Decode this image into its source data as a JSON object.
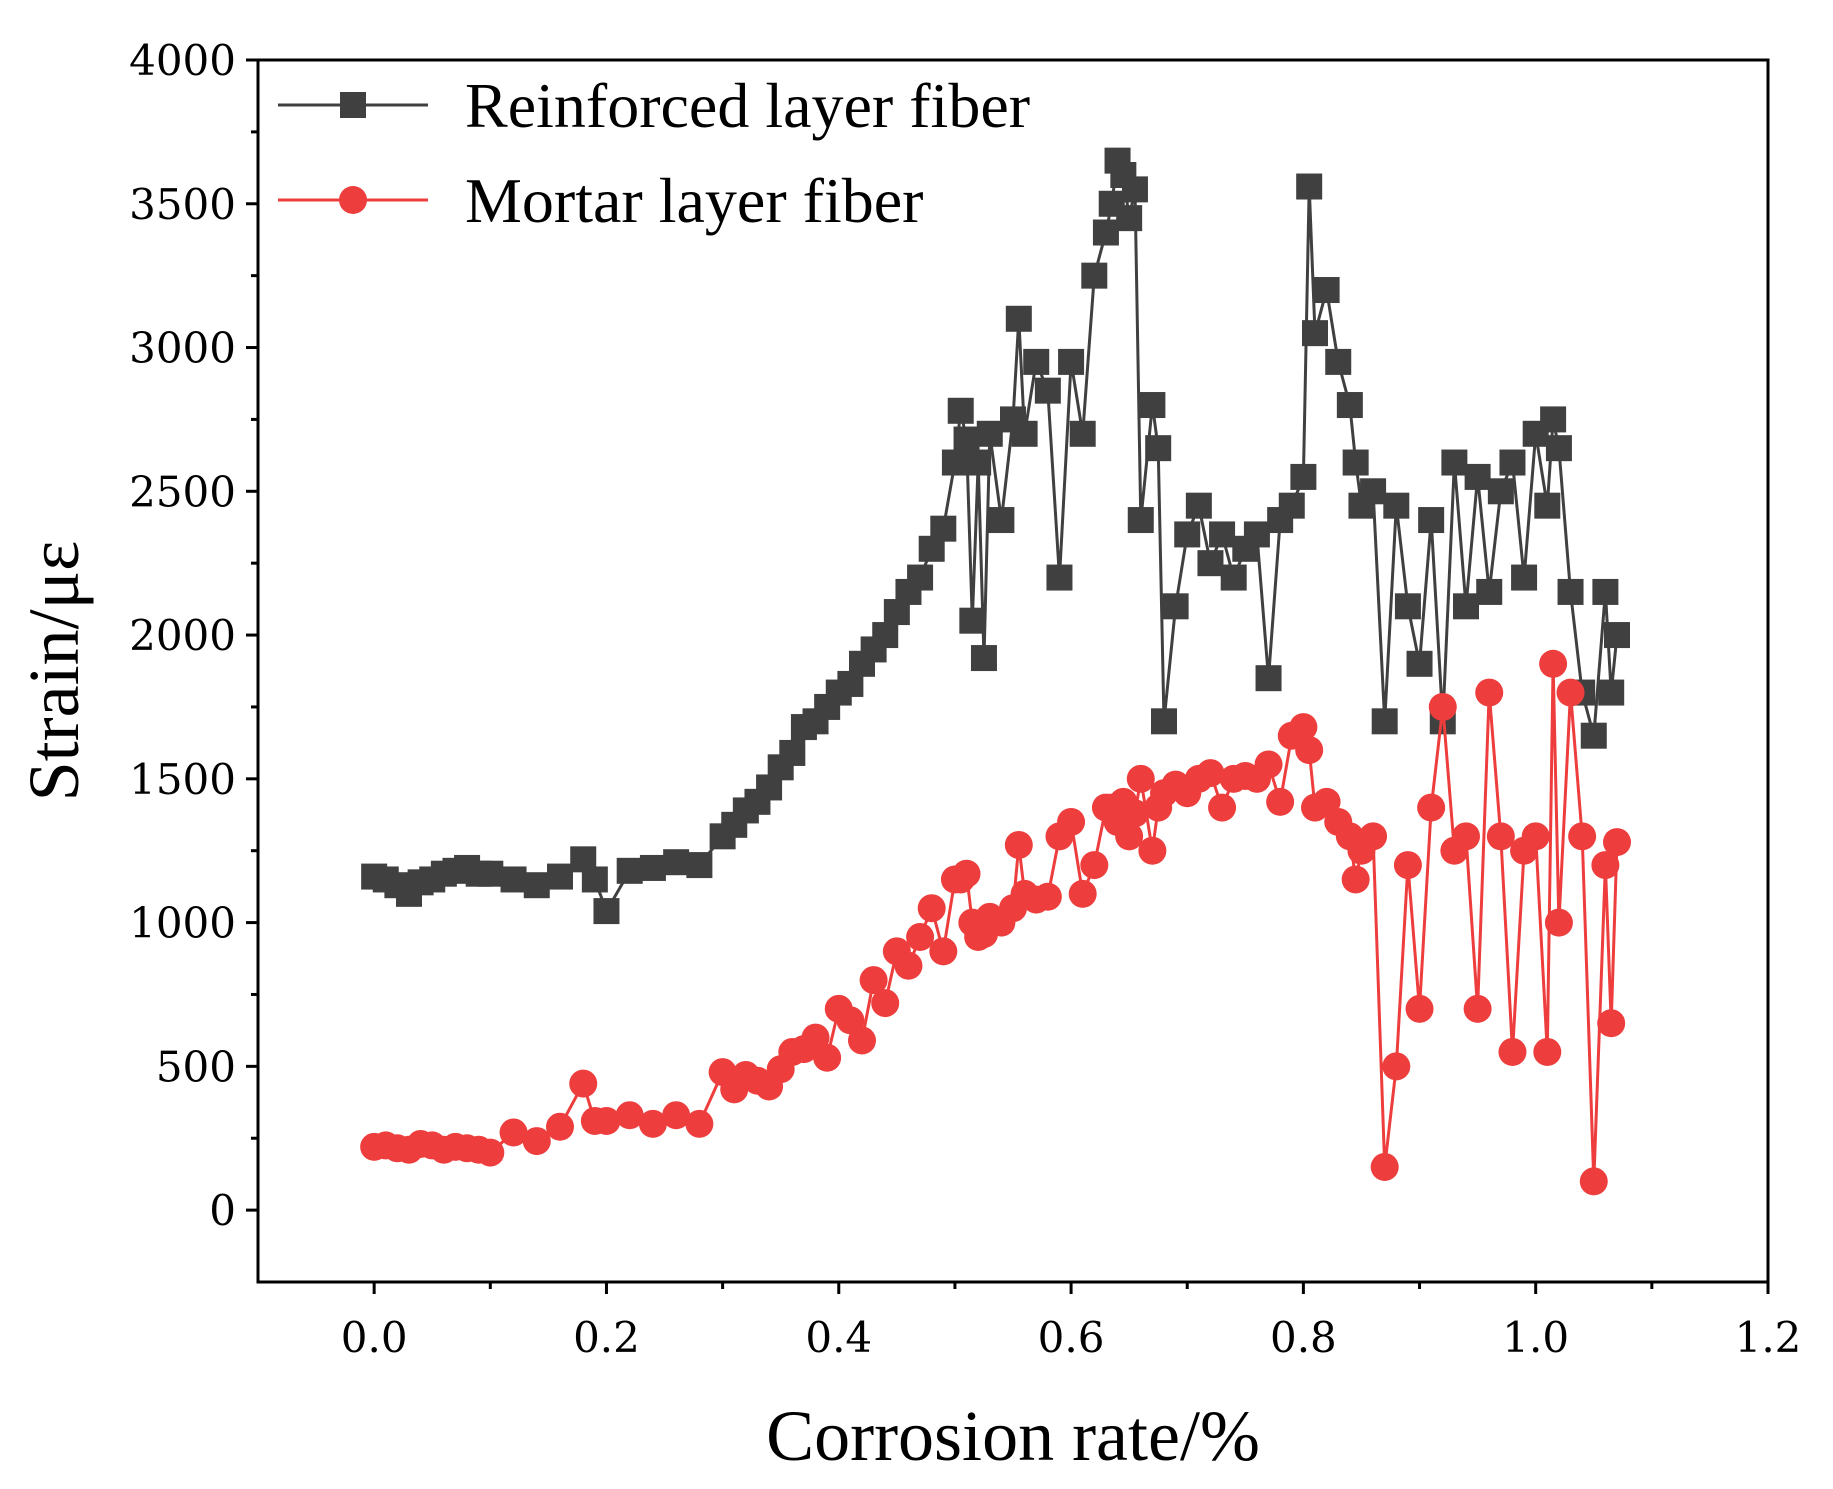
{
  "chart_data": {
    "type": "line",
    "title": "",
    "xlabel": "Corrosion rate/%",
    "ylabel": "Strain/με",
    "xlim": [
      -0.1,
      1.2
    ],
    "ylim": [
      -250,
      4000
    ],
    "x_ticks": [
      0.0,
      0.2,
      0.4,
      0.6,
      0.8,
      1.0,
      1.2
    ],
    "x_tick_labels": [
      "0.0",
      "0.2",
      "0.4",
      "0.6",
      "0.8",
      "1.0",
      "1.2"
    ],
    "y_ticks": [
      0,
      500,
      1000,
      1500,
      2000,
      2500,
      3000,
      3500,
      4000
    ],
    "y_tick_labels": [
      "0",
      "500",
      "1000",
      "1500",
      "2000",
      "2500",
      "3000",
      "3500",
      "4000"
    ],
    "grid": false,
    "legend_position": "top-left",
    "series": [
      {
        "name": "Reinforced layer fiber",
        "color": "#404040",
        "marker": "square",
        "x": [
          0.0,
          0.01,
          0.02,
          0.03,
          0.04,
          0.05,
          0.06,
          0.07,
          0.08,
          0.09,
          0.1,
          0.12,
          0.14,
          0.16,
          0.18,
          0.19,
          0.2,
          0.22,
          0.24,
          0.26,
          0.28,
          0.3,
          0.31,
          0.32,
          0.33,
          0.34,
          0.35,
          0.36,
          0.37,
          0.38,
          0.39,
          0.4,
          0.41,
          0.42,
          0.43,
          0.44,
          0.45,
          0.46,
          0.47,
          0.48,
          0.49,
          0.5,
          0.505,
          0.51,
          0.515,
          0.52,
          0.525,
          0.53,
          0.54,
          0.55,
          0.555,
          0.56,
          0.57,
          0.58,
          0.59,
          0.6,
          0.61,
          0.62,
          0.63,
          0.635,
          0.64,
          0.645,
          0.65,
          0.655,
          0.66,
          0.67,
          0.675,
          0.68,
          0.69,
          0.7,
          0.71,
          0.72,
          0.73,
          0.74,
          0.75,
          0.76,
          0.77,
          0.78,
          0.79,
          0.8,
          0.805,
          0.81,
          0.82,
          0.83,
          0.84,
          0.845,
          0.85,
          0.86,
          0.87,
          0.88,
          0.89,
          0.9,
          0.91,
          0.92,
          0.93,
          0.94,
          0.95,
          0.96,
          0.97,
          0.98,
          0.99,
          1.0,
          1.01,
          1.015,
          1.02,
          1.03,
          1.04,
          1.05,
          1.06,
          1.065,
          1.07
        ],
        "y": [
          1160,
          1150,
          1130,
          1100,
          1140,
          1150,
          1170,
          1180,
          1190,
          1170,
          1170,
          1150,
          1130,
          1160,
          1220,
          1150,
          1040,
          1180,
          1190,
          1210,
          1200,
          1300,
          1340,
          1390,
          1420,
          1470,
          1540,
          1590,
          1680,
          1700,
          1750,
          1800,
          1830,
          1900,
          1950,
          2000,
          2080,
          2150,
          2200,
          2300,
          2370,
          2600,
          2780,
          2680,
          2050,
          2600,
          1920,
          2700,
          2400,
          2750,
          3100,
          2700,
          2950,
          2850,
          2200,
          2950,
          2700,
          3250,
          3400,
          3500,
          3650,
          3600,
          3450,
          3550,
          2400,
          2800,
          2650,
          1700,
          2100,
          2350,
          2450,
          2250,
          2350,
          2200,
          2300,
          2350,
          1850,
          2400,
          2450,
          2550,
          3560,
          3050,
          3200,
          2950,
          2800,
          2600,
          2450,
          2500,
          1700,
          2450,
          2100,
          1900,
          2400,
          1700,
          2600,
          2100,
          2550,
          2150,
          2500,
          2600,
          2200,
          2700,
          2450,
          2750,
          2650,
          2150,
          1800,
          1650,
          2150,
          1800,
          2000
        ]
      },
      {
        "name": "Mortar layer fiber",
        "color": "#ee3d3d",
        "marker": "circle",
        "x": [
          0.0,
          0.01,
          0.02,
          0.03,
          0.04,
          0.05,
          0.06,
          0.07,
          0.08,
          0.09,
          0.1,
          0.12,
          0.14,
          0.16,
          0.18,
          0.19,
          0.2,
          0.22,
          0.24,
          0.26,
          0.28,
          0.3,
          0.31,
          0.32,
          0.33,
          0.34,
          0.35,
          0.36,
          0.37,
          0.38,
          0.39,
          0.4,
          0.41,
          0.42,
          0.43,
          0.44,
          0.45,
          0.46,
          0.47,
          0.48,
          0.49,
          0.5,
          0.505,
          0.51,
          0.515,
          0.52,
          0.525,
          0.53,
          0.54,
          0.55,
          0.555,
          0.56,
          0.57,
          0.58,
          0.59,
          0.6,
          0.61,
          0.62,
          0.63,
          0.635,
          0.64,
          0.645,
          0.65,
          0.655,
          0.66,
          0.67,
          0.675,
          0.68,
          0.69,
          0.7,
          0.71,
          0.72,
          0.73,
          0.74,
          0.75,
          0.76,
          0.77,
          0.78,
          0.79,
          0.8,
          0.805,
          0.81,
          0.82,
          0.83,
          0.84,
          0.845,
          0.85,
          0.86,
          0.87,
          0.88,
          0.89,
          0.9,
          0.91,
          0.92,
          0.93,
          0.94,
          0.95,
          0.96,
          0.97,
          0.98,
          0.99,
          1.0,
          1.01,
          1.015,
          1.02,
          1.03,
          1.04,
          1.05,
          1.06,
          1.065,
          1.07
        ],
        "y": [
          220,
          225,
          215,
          210,
          230,
          225,
          210,
          220,
          215,
          210,
          200,
          270,
          240,
          290,
          440,
          310,
          310,
          330,
          300,
          330,
          300,
          480,
          420,
          470,
          450,
          430,
          490,
          550,
          560,
          600,
          530,
          700,
          660,
          590,
          800,
          720,
          900,
          850,
          950,
          1050,
          900,
          1150,
          1150,
          1170,
          1000,
          950,
          960,
          1020,
          1000,
          1050,
          1270,
          1100,
          1080,
          1090,
          1300,
          1350,
          1100,
          1200,
          1400,
          1400,
          1350,
          1420,
          1300,
          1380,
          1500,
          1250,
          1400,
          1450,
          1480,
          1450,
          1500,
          1520,
          1400,
          1500,
          1510,
          1500,
          1550,
          1420,
          1650,
          1680,
          1600,
          1400,
          1420,
          1350,
          1300,
          1150,
          1250,
          1300,
          150,
          500,
          1200,
          700,
          1400,
          1750,
          1250,
          1300,
          700,
          1800,
          1300,
          550,
          1250,
          1300,
          550,
          1900,
          1000,
          1800,
          1300,
          100,
          1200,
          650,
          1280
        ]
      }
    ]
  }
}
